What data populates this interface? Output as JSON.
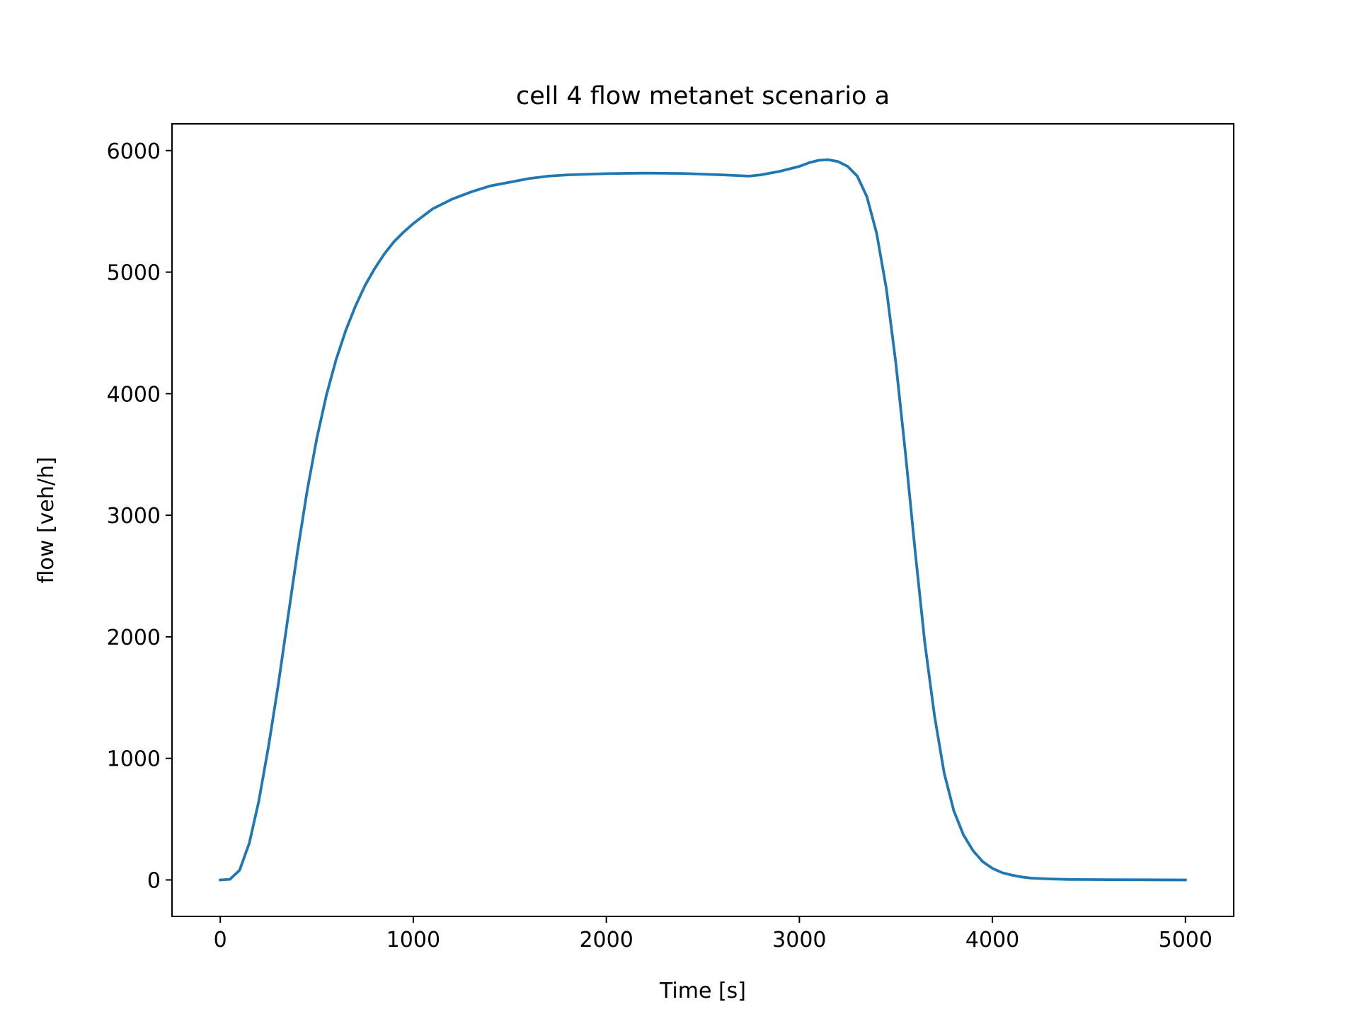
{
  "chart_data": {
    "type": "line",
    "title": "cell 4 flow metanet scenario a",
    "xlabel": "Time [s]",
    "ylabel": "flow [veh/h]",
    "xlim": [
      -250,
      5250
    ],
    "ylim": [
      -300,
      6220
    ],
    "xticks": [
      0,
      1000,
      2000,
      3000,
      4000,
      5000
    ],
    "yticks": [
      0,
      1000,
      2000,
      3000,
      4000,
      5000,
      6000
    ],
    "grid": false,
    "legend": "none",
    "series": [
      {
        "color": "#1f77b4",
        "x": [
          0,
          50,
          100,
          150,
          200,
          250,
          300,
          350,
          400,
          450,
          500,
          550,
          600,
          650,
          700,
          750,
          800,
          850,
          900,
          950,
          1000,
          1100,
          1200,
          1300,
          1400,
          1500,
          1600,
          1700,
          1800,
          2000,
          2200,
          2400,
          2600,
          2740,
          2800,
          2900,
          3000,
          3050,
          3100,
          3150,
          3200,
          3250,
          3300,
          3350,
          3400,
          3450,
          3500,
          3550,
          3600,
          3650,
          3700,
          3750,
          3800,
          3850,
          3900,
          3950,
          4000,
          4050,
          4100,
          4150,
          4200,
          4300,
          4400,
          4600,
          4800,
          5000
        ],
        "y": [
          0,
          5,
          80,
          300,
          650,
          1100,
          1600,
          2150,
          2700,
          3200,
          3630,
          3990,
          4280,
          4520,
          4720,
          4890,
          5030,
          5150,
          5250,
          5330,
          5400,
          5520,
          5600,
          5660,
          5710,
          5740,
          5770,
          5790,
          5800,
          5810,
          5815,
          5812,
          5800,
          5790,
          5800,
          5830,
          5870,
          5900,
          5920,
          5925,
          5910,
          5870,
          5790,
          5620,
          5320,
          4870,
          4250,
          3500,
          2700,
          1950,
          1350,
          880,
          570,
          370,
          240,
          150,
          95,
          60,
          40,
          25,
          15,
          8,
          4,
          2,
          1,
          0
        ]
      }
    ]
  }
}
